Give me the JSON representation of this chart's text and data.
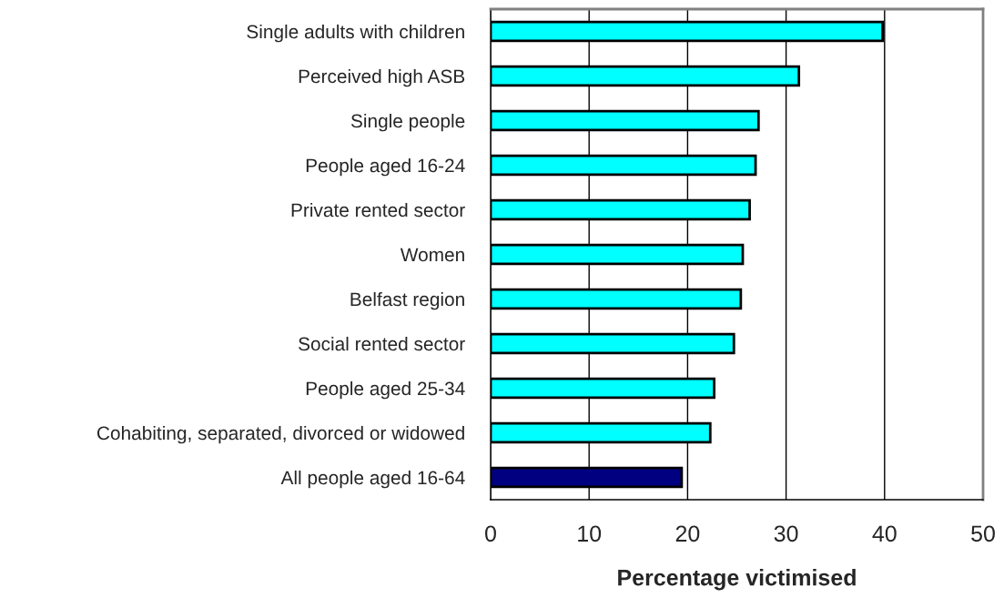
{
  "chart_data": {
    "type": "bar",
    "orientation": "horizontal",
    "xlabel": "Percentage victimised",
    "categories": [
      "Single adults with children",
      "Perceived high ASB",
      "Single people",
      "People aged 16-24",
      "Private rented sector",
      "Women",
      "Belfast region",
      "Social rented sector",
      "People aged 25-34",
      "Cohabiting, separated, divorced or widowed",
      "All people aged 16-64"
    ],
    "values": [
      39.8,
      31.3,
      27.2,
      26.9,
      26.3,
      25.6,
      25.4,
      24.7,
      22.7,
      22.3,
      19.4
    ],
    "colors": [
      "#00ffff",
      "#00ffff",
      "#00ffff",
      "#00ffff",
      "#00ffff",
      "#00ffff",
      "#00ffff",
      "#00ffff",
      "#00ffff",
      "#00ffff",
      "#000080"
    ],
    "xlim": [
      0,
      50
    ],
    "xticks": [
      0,
      10,
      20,
      30,
      40,
      50
    ],
    "grid": "x"
  }
}
